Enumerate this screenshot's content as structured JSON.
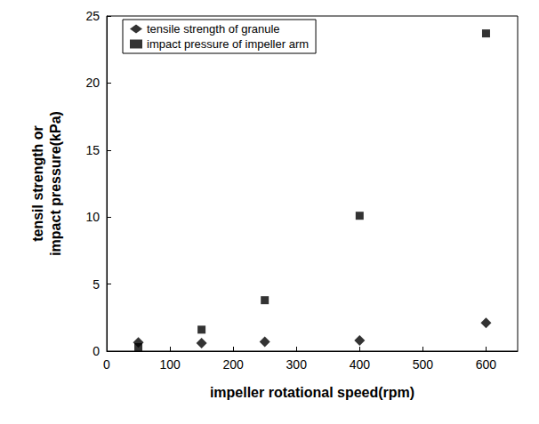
{
  "chart_data": {
    "type": "scatter",
    "x_label": "impeller rotational speed(rpm)",
    "y_label": "tensil strength or\nimpact pressure(kPa)",
    "xlim": [
      0,
      650
    ],
    "xticks": [
      0,
      100,
      200,
      300,
      400,
      500,
      600
    ],
    "ylim": [
      0,
      25
    ],
    "yticks": [
      0,
      5,
      10,
      15,
      20,
      25
    ],
    "grid": false,
    "legend": "upper left",
    "series": [
      {
        "name": "tensile strength of granule",
        "color": "#000000",
        "marker": "diamond",
        "x": [
          50,
          150,
          250,
          400,
          600
        ],
        "values": [
          0.65,
          0.6,
          0.7,
          0.8,
          2.1
        ]
      },
      {
        "name": "impact pressure of impeller arm",
        "color": "#000000",
        "marker": "square",
        "x": [
          50,
          150,
          250,
          400,
          600
        ],
        "values": [
          0.3,
          1.6,
          3.8,
          10.1,
          23.7
        ]
      }
    ]
  }
}
